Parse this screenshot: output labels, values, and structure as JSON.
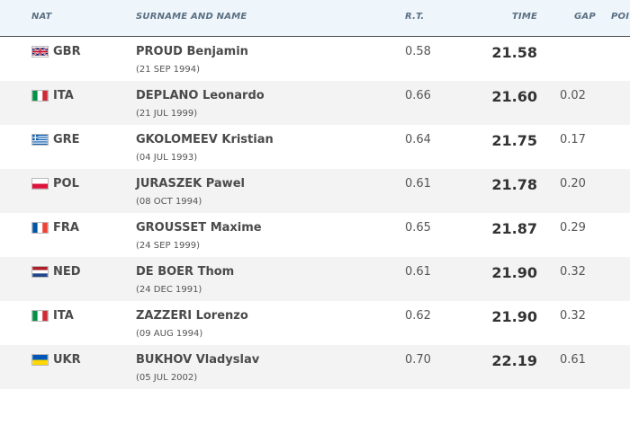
{
  "header": {
    "nat": "NAT",
    "name": "SURNAME AND NAME",
    "rt": "R.T.",
    "time": "TIME",
    "gap": "GAP",
    "points": "POI"
  },
  "rows": [
    {
      "nat": "GBR",
      "name": "PROUD Benjamin",
      "dob": "(21 SEP 1994)",
      "rt": "0.58",
      "time": "21.58",
      "gap": ""
    },
    {
      "nat": "ITA",
      "name": "DEPLANO Leonardo",
      "dob": "(21 JUL 1999)",
      "rt": "0.66",
      "time": "21.60",
      "gap": "0.02"
    },
    {
      "nat": "GRE",
      "name": "GKOLOMEEV Kristian",
      "dob": "(04 JUL 1993)",
      "rt": "0.64",
      "time": "21.75",
      "gap": "0.17"
    },
    {
      "nat": "POL",
      "name": "JURASZEK Pawel",
      "dob": "(08 OCT 1994)",
      "rt": "0.61",
      "time": "21.78",
      "gap": "0.20"
    },
    {
      "nat": "FRA",
      "name": "GROUSSET Maxime",
      "dob": "(24 SEP 1999)",
      "rt": "0.65",
      "time": "21.87",
      "gap": "0.29"
    },
    {
      "nat": "NED",
      "name": "DE BOER Thom",
      "dob": "(24 DEC 1991)",
      "rt": "0.61",
      "time": "21.90",
      "gap": "0.32"
    },
    {
      "nat": "ITA",
      "name": "ZAZZERI Lorenzo",
      "dob": "(09 AUG 1994)",
      "rt": "0.62",
      "time": "21.90",
      "gap": "0.32"
    },
    {
      "nat": "UKR",
      "name": "BUKHOV Vladyslav",
      "dob": "(05 JUL 2002)",
      "rt": "0.70",
      "time": "22.19",
      "gap": "0.61"
    }
  ],
  "flags": {
    "GBR": "flag-gbr-icon",
    "ITA": "flag-ita-icon",
    "GRE": "flag-gre-icon",
    "POL": "flag-pol-icon",
    "FRA": "flag-fra-icon",
    "NED": "flag-ned-icon",
    "UKR": "flag-ukr-icon"
  },
  "colors": {
    "header_bg": "#eef5fb",
    "header_text": "#5a6f82",
    "row_alt_bg": "#f3f3f3",
    "text": "#4a4a4a"
  }
}
